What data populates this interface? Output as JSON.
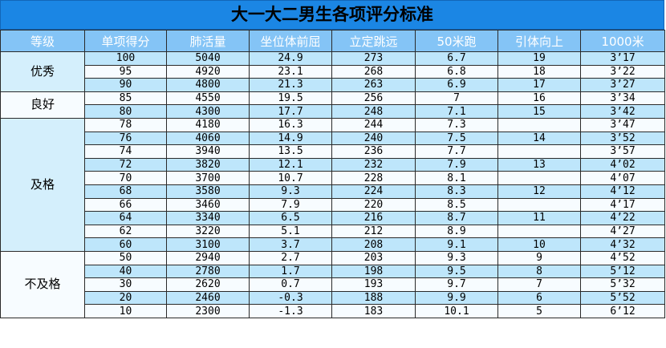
{
  "title": "大一大二男生各项评分标准",
  "headers": [
    "等级",
    "单项得分",
    "肺活量",
    "坐位体前屈",
    "立定跳远",
    "50米跑",
    "引体向上",
    "1000米"
  ],
  "colors": {
    "title_bg": "#1b86e4",
    "header_bg": "#84c4f6",
    "row_alt": "#bee6fb",
    "row": "#f7fcff"
  },
  "grades": [
    {
      "label": "优秀",
      "rows": 3
    },
    {
      "label": "良好",
      "rows": 2
    },
    {
      "label": "及格",
      "rows": 10
    },
    {
      "label": "不及格",
      "rows": 5
    }
  ],
  "rows": [
    [
      "100",
      "5040",
      "24.9",
      "273",
      "6.7",
      "19",
      "3’17"
    ],
    [
      "95",
      "4920",
      "23.1",
      "268",
      "6.8",
      "18",
      "3’22"
    ],
    [
      "90",
      "4800",
      "21.3",
      "263",
      "6.9",
      "17",
      "3’27"
    ],
    [
      "85",
      "4550",
      "19.5",
      "256",
      "7",
      "16",
      "3’34"
    ],
    [
      "80",
      "4300",
      "17.7",
      "248",
      "7.1",
      "15",
      "3’42"
    ],
    [
      "78",
      "4180",
      "16.3",
      "244",
      "7.3",
      "",
      "3’47"
    ],
    [
      "76",
      "4060",
      "14.9",
      "240",
      "7.5",
      "14",
      "3’52"
    ],
    [
      "74",
      "3940",
      "13.5",
      "236",
      "7.7",
      "",
      "3’57"
    ],
    [
      "72",
      "3820",
      "12.1",
      "232",
      "7.9",
      "13",
      "4’02"
    ],
    [
      "70",
      "3700",
      "10.7",
      "228",
      "8.1",
      "",
      "4’07"
    ],
    [
      "68",
      "3580",
      "9.3",
      "224",
      "8.3",
      "12",
      "4’12"
    ],
    [
      "66",
      "3460",
      "7.9",
      "220",
      "8.5",
      "",
      "4’17"
    ],
    [
      "64",
      "3340",
      "6.5",
      "216",
      "8.7",
      "11",
      "4’22"
    ],
    [
      "62",
      "3220",
      "5.1",
      "212",
      "8.9",
      "",
      "4’27"
    ],
    [
      "60",
      "3100",
      "3.7",
      "208",
      "9.1",
      "10",
      "4’32"
    ],
    [
      "50",
      "2940",
      "2.7",
      "203",
      "9.3",
      "9",
      "4’52"
    ],
    [
      "40",
      "2780",
      "1.7",
      "198",
      "9.5",
      "8",
      "5’12"
    ],
    [
      "30",
      "2620",
      "0.7",
      "193",
      "9.7",
      "7",
      "5’32"
    ],
    [
      "20",
      "2460",
      "-0.3",
      "188",
      "9.9",
      "6",
      "5’52"
    ],
    [
      "10",
      "2300",
      "-1.3",
      "183",
      "10.1",
      "5",
      "6’12"
    ]
  ]
}
